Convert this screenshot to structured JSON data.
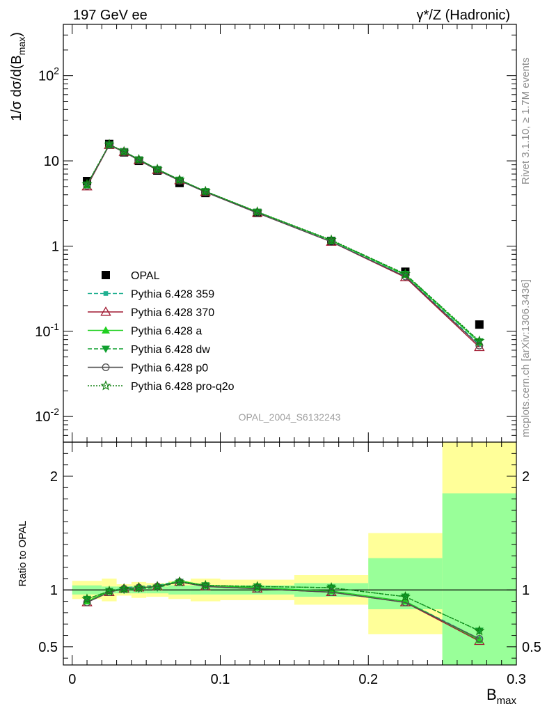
{
  "header": {
    "left": "197 GeV ee",
    "right": "γ*/Z (Hadronic)"
  },
  "side_labels": {
    "top": "Rivet 3.1.10, ≥ 1.7M events",
    "bottom": "mcplots.cern.ch [arXiv:1306.3436]"
  },
  "analysis_id": "OPAL_2004_S6132243",
  "colors": {
    "data": "#000000",
    "p359": "#20b090",
    "p370": "#a01830",
    "pa": "#20d020",
    "pdw": "#10a030",
    "pp0": "#505050",
    "pq2o": "#108010",
    "band_yellow": "#ffff99",
    "band_green": "#99ff99"
  },
  "chart_data": [
    {
      "type": "scatter",
      "panel": "main",
      "ylabel": "1/σ dσ/d(B_max)",
      "yscale": "log",
      "ylim": [
        0.005,
        400
      ],
      "xlim": [
        -0.006,
        0.3
      ],
      "ytick_labels": [
        "10^-2",
        "10^-1",
        "1",
        "10",
        "10^2"
      ],
      "x": [
        0.01,
        0.025,
        0.035,
        0.045,
        0.0575,
        0.0725,
        0.09,
        0.125,
        0.175,
        0.225,
        0.275
      ],
      "x_bins": [
        [
          0.0,
          0.02
        ],
        [
          0.02,
          0.03
        ],
        [
          0.03,
          0.04
        ],
        [
          0.04,
          0.05
        ],
        [
          0.05,
          0.065
        ],
        [
          0.065,
          0.08
        ],
        [
          0.08,
          0.1
        ],
        [
          0.1,
          0.15
        ],
        [
          0.15,
          0.2
        ],
        [
          0.2,
          0.25
        ],
        [
          0.25,
          0.3
        ]
      ],
      "legend_position": "middle-left",
      "series": [
        {
          "name": "OPAL",
          "key": "data",
          "marker": "square",
          "values": [
            5.8,
            15.8,
            12.6,
            10.0,
            7.7,
            5.5,
            4.2,
            2.45,
            1.15,
            0.5,
            0.12
          ]
        },
        {
          "name": "Pythia 6.428 359",
          "key": "p359",
          "marker": "small-square",
          "dash": "6,3",
          "values": [
            5.2,
            15.4,
            12.8,
            10.3,
            7.9,
            5.95,
            4.35,
            2.5,
            1.14,
            0.45,
            0.07
          ]
        },
        {
          "name": "Pythia 6.428 370",
          "key": "p370",
          "marker": "open-triangle",
          "dash": "",
          "values": [
            5.0,
            15.3,
            12.7,
            10.2,
            7.8,
            5.9,
            4.3,
            2.45,
            1.12,
            0.43,
            0.065
          ]
        },
        {
          "name": "Pythia 6.428 a",
          "key": "pa",
          "marker": "triangle",
          "dash": "",
          "values": [
            5.2,
            15.5,
            12.9,
            10.4,
            8.0,
            6.0,
            4.38,
            2.52,
            1.16,
            0.46,
            0.074
          ]
        },
        {
          "name": "Pythia 6.428 dw",
          "key": "pdw",
          "marker": "triangle-down",
          "dash": "6,3",
          "values": [
            5.25,
            15.5,
            12.9,
            10.4,
            8.0,
            6.0,
            4.4,
            2.52,
            1.17,
            0.47,
            0.076
          ]
        },
        {
          "name": "Pythia 6.428 p0",
          "key": "pp0",
          "marker": "open-circle",
          "dash": "",
          "values": [
            5.1,
            15.3,
            12.7,
            10.2,
            7.8,
            5.85,
            4.3,
            2.45,
            1.12,
            0.44,
            0.068
          ]
        },
        {
          "name": "Pythia 6.428 pro-q2o",
          "key": "pq2o",
          "marker": "open-star",
          "dash": "2,2",
          "values": [
            5.3,
            15.6,
            12.9,
            10.4,
            8.0,
            6.0,
            4.4,
            2.53,
            1.18,
            0.47,
            0.077
          ]
        }
      ]
    },
    {
      "type": "line",
      "panel": "ratio",
      "xlabel": "B_max",
      "ylabel": "Ratio to OPAL",
      "ylim": [
        0.34,
        2.3
      ],
      "xlim": [
        -0.006,
        0.3
      ],
      "xtick_labels": [
        "0",
        "0.1",
        "0.2",
        "0.3"
      ],
      "ytick_labels": [
        "0.5",
        "1",
        "2"
      ],
      "reference": 1.0,
      "x": [
        0.01,
        0.025,
        0.035,
        0.045,
        0.0575,
        0.0725,
        0.09,
        0.125,
        0.175,
        0.225,
        0.275
      ],
      "bands": [
        {
          "x0": 0.0,
          "x1": 0.02,
          "stat_lo": 0.96,
          "stat_hi": 1.04,
          "tot_lo": 0.92,
          "tot_hi": 1.08
        },
        {
          "x0": 0.02,
          "x1": 0.03,
          "stat_lo": 0.97,
          "stat_hi": 1.03,
          "tot_lo": 0.9,
          "tot_hi": 1.1
        },
        {
          "x0": 0.03,
          "x1": 0.04,
          "stat_lo": 0.97,
          "stat_hi": 1.03,
          "tot_lo": 0.95,
          "tot_hi": 1.05
        },
        {
          "x0": 0.04,
          "x1": 0.05,
          "stat_lo": 0.97,
          "stat_hi": 1.03,
          "tot_lo": 0.93,
          "tot_hi": 1.07
        },
        {
          "x0": 0.05,
          "x1": 0.065,
          "stat_lo": 0.97,
          "stat_hi": 1.03,
          "tot_lo": 0.94,
          "tot_hi": 1.06
        },
        {
          "x0": 0.065,
          "x1": 0.08,
          "stat_lo": 0.96,
          "stat_hi": 1.04,
          "tot_lo": 0.92,
          "tot_hi": 1.08
        },
        {
          "x0": 0.08,
          "x1": 0.1,
          "stat_lo": 0.96,
          "stat_hi": 1.04,
          "tot_lo": 0.9,
          "tot_hi": 1.1
        },
        {
          "x0": 0.1,
          "x1": 0.15,
          "stat_lo": 0.96,
          "stat_hi": 1.04,
          "tot_lo": 0.91,
          "tot_hi": 1.09
        },
        {
          "x0": 0.15,
          "x1": 0.2,
          "stat_lo": 0.94,
          "stat_hi": 1.06,
          "tot_lo": 0.87,
          "tot_hi": 1.13
        },
        {
          "x0": 0.2,
          "x1": 0.25,
          "stat_lo": 0.83,
          "stat_hi": 1.28,
          "tot_lo": 0.61,
          "tot_hi": 1.5
        },
        {
          "x0": 0.25,
          "x1": 0.3,
          "stat_lo": 0.3,
          "stat_hi": 1.85,
          "tot_lo": 0.3,
          "tot_hi": 2.5
        }
      ],
      "series": [
        {
          "key": "p359",
          "marker": "small-square",
          "dash": "6,3",
          "values": [
            0.9,
            0.985,
            1.02,
            1.03,
            1.04,
            1.08,
            1.04,
            1.02,
            0.99,
            0.9,
            0.57
          ]
        },
        {
          "key": "p370",
          "marker": "open-triangle",
          "dash": "",
          "values": [
            0.89,
            0.98,
            1.01,
            1.02,
            1.03,
            1.07,
            1.03,
            1.01,
            0.98,
            0.89,
            0.55
          ]
        },
        {
          "key": "pa",
          "marker": "triangle",
          "dash": "",
          "values": [
            0.9,
            0.99,
            1.01,
            1.02,
            1.03,
            1.08,
            1.04,
            1.02,
            0.99,
            0.9,
            0.56
          ]
        },
        {
          "key": "pdw",
          "marker": "triangle-down",
          "dash": "6,3",
          "values": [
            0.92,
            0.99,
            1.0,
            1.01,
            1.02,
            1.07,
            1.04,
            1.03,
            1.02,
            0.94,
            0.64
          ]
        },
        {
          "key": "pp0",
          "marker": "open-circle",
          "dash": "",
          "values": [
            0.89,
            0.98,
            1.01,
            1.02,
            1.03,
            1.07,
            1.03,
            1.01,
            0.98,
            0.89,
            0.57
          ]
        },
        {
          "key": "pq2o",
          "marker": "open-star",
          "dash": "2,2",
          "values": [
            0.92,
            0.99,
            1.01,
            1.02,
            1.03,
            1.07,
            1.04,
            1.03,
            1.02,
            0.94,
            0.64
          ]
        }
      ]
    }
  ]
}
